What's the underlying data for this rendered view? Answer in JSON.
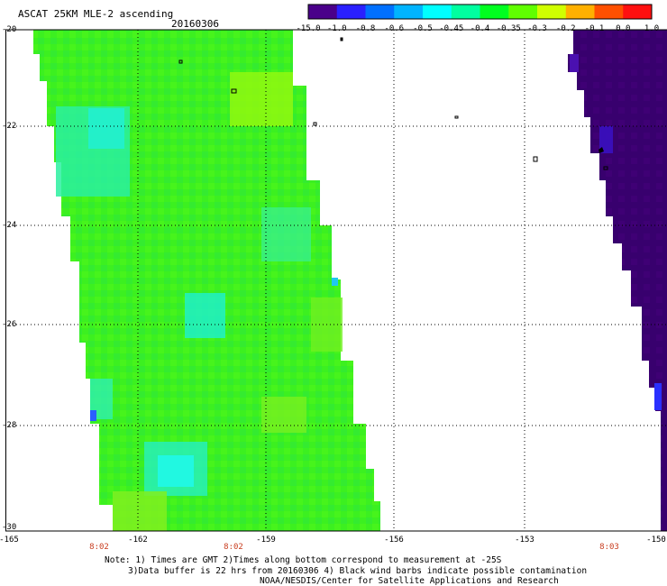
{
  "header": {
    "title": "ASCAT 25KM MLE-2 ascending",
    "date": "20160306"
  },
  "colorbar": {
    "labels": [
      "-15.0",
      "-1.0",
      "-0.8",
      "-0.6",
      "-0.5",
      "-0.45",
      "-0.4",
      "-0.35",
      "-0.3",
      "-0.2",
      "-0.1",
      "0.0",
      "1.0"
    ],
    "colors": [
      "#2a0030",
      "#4a008a",
      "#2a20ff",
      "#0070ff",
      "#00b4ff",
      "#00ffff",
      "#00ffa0",
      "#00ff20",
      "#60ff00",
      "#d0ff00",
      "#ffb000",
      "#ff5000",
      "#ff1010"
    ]
  },
  "axes": {
    "lat_labels": [
      "-20",
      "-22",
      "-24",
      "-26",
      "-28",
      "-30"
    ],
    "lon_labels": [
      "-165",
      "-162",
      "-159",
      "-156",
      "-153",
      "-150"
    ],
    "time_labels": [
      "8:02",
      "8:02",
      "8:03"
    ]
  },
  "notes": {
    "line1": "Note: 1) Times are GMT 2)Times along bottom correspond to measurement at -25S",
    "line2": "3)Data buffer is 22 hrs from 20160306 4) Black wind barbs indicate possible contamination",
    "line3": "NOAA/NESDIS/Center for Satellite Applications and Research"
  },
  "swaths": {
    "left_color": "#3cf020",
    "right_color": "#38006e"
  }
}
